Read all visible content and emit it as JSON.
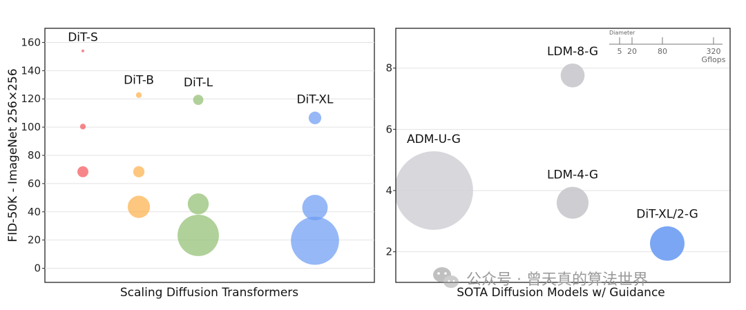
{
  "watermark": {
    "text": "公众号 · 曾天真的算法世界",
    "icon": "wechat-icon"
  },
  "chart_data": [
    {
      "type": "scatter",
      "title": "",
      "xlabel": "Scaling Diffusion Transformers",
      "ylabel": "FID-50K - ImageNet 256×256",
      "ylim": [
        -10,
        170
      ],
      "yticks": [
        0,
        20,
        40,
        60,
        80,
        100,
        120,
        140,
        160
      ],
      "grid": "horizontal",
      "categories": [
        "DiT-S",
        "DiT-B",
        "DiT-L",
        "DiT-XL"
      ],
      "series": [
        {
          "name": "DiT-S",
          "color": "#f4585d",
          "points": [
            {
              "y": 154,
              "gflops": 1.4
            },
            {
              "y": 100.4,
              "gflops": 6
            },
            {
              "y": 68.4,
              "gflops": 22
            }
          ]
        },
        {
          "name": "DiT-B",
          "color": "#fdb14e",
          "points": [
            {
              "y": 122.7,
              "gflops": 6
            },
            {
              "y": 68.4,
              "gflops": 23
            },
            {
              "y": 43.5,
              "gflops": 90
            }
          ]
        },
        {
          "name": "DiT-L",
          "color": "#92bf72",
          "points": [
            {
              "y": 119.3,
              "gflops": 19
            },
            {
              "y": 45.6,
              "gflops": 80
            },
            {
              "y": 23.3,
              "gflops": 310
            }
          ]
        },
        {
          "name": "DiT-XL",
          "color": "#6d9cf3",
          "points": [
            {
              "y": 106.5,
              "gflops": 29
            },
            {
              "y": 43,
              "gflops": 118
            },
            {
              "y": 19.5,
              "gflops": 420
            }
          ]
        }
      ]
    },
    {
      "type": "scatter",
      "title": "",
      "xlabel": "SOTA Diffusion Models w/ Guidance",
      "ylabel": "",
      "ylim": [
        1,
        9.3
      ],
      "yticks": [
        2,
        4,
        6,
        8
      ],
      "grid": "horizontal",
      "points": [
        {
          "label": "ADM-U-G",
          "y": 4.0,
          "gflops": 1120,
          "color": "#d3d3d8"
        },
        {
          "label": "LDM-8-G",
          "y": 7.76,
          "gflops": 104,
          "color": "#c8c8cd"
        },
        {
          "label": "LDM-4-G",
          "y": 3.6,
          "gflops": 184,
          "color": "#c8c8cd"
        },
        {
          "label": "DiT-XL/2-G",
          "y": 2.27,
          "gflops": 216,
          "color": "#6d9cf3"
        }
      ],
      "size_legend": {
        "title": "Diameter",
        "values": [
          5,
          20,
          80,
          320
        ],
        "unit": "Gflops"
      }
    }
  ]
}
